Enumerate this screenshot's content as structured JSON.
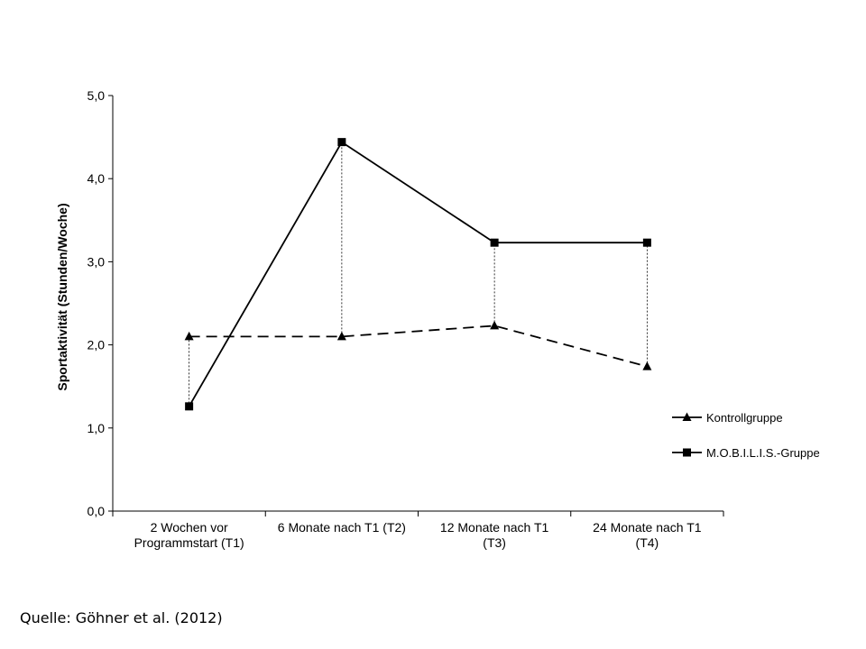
{
  "chart_data": {
    "type": "line",
    "title": "",
    "xlabel": "",
    "ylabel": "Sportaktivität (Stunden/Woche)",
    "ylim": [
      0,
      5
    ],
    "yticks": [
      "0,0",
      "1,0",
      "2,0",
      "3,0",
      "4,0",
      "5,0"
    ],
    "categories": [
      [
        "2 Wochen vor",
        "Programmstart (T1)"
      ],
      [
        "6 Monate nach T1 (T2)"
      ],
      [
        "12 Monate nach T1",
        "(T3)"
      ],
      [
        "24 Monate nach T1",
        "(T4)"
      ]
    ],
    "series": [
      {
        "name": "Kontrollgruppe",
        "values": [
          2.1,
          2.1,
          2.23,
          1.74
        ],
        "marker": "triangle",
        "dash": true,
        "color": "#000000"
      },
      {
        "name": "M.O.B.I.L.I.S.-Gruppe",
        "values": [
          1.26,
          4.44,
          3.23,
          3.23
        ],
        "marker": "square",
        "dash": false,
        "color": "#000000"
      }
    ],
    "legend_position": "right",
    "grid": false,
    "difference_lines": true
  },
  "source": "Quelle: Göhner et al. (2012)"
}
